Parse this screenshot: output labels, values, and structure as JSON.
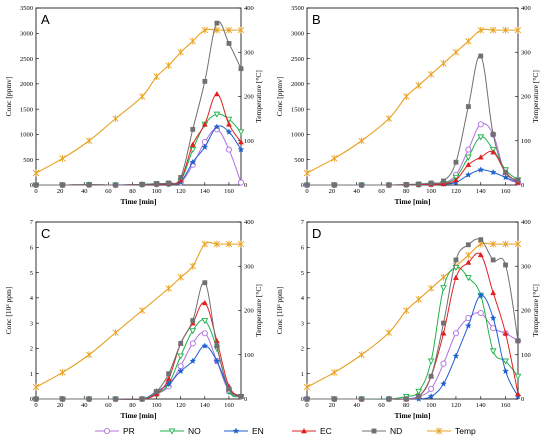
{
  "colors": {
    "PR": "#b070e0",
    "NO": "#1fb24a",
    "EN": "#1f5fd0",
    "EC": "#e02020",
    "ND": "#707070",
    "Temp": "#e8a020"
  },
  "legend": [
    "PR",
    "NO",
    "EN",
    "EC",
    "ND",
    "Temp"
  ],
  "chart_data": [
    {
      "type": "line",
      "panel": "A",
      "xlabel": "Time [min]",
      "ylabel": "Conc [ppmv]",
      "y2label": "Temperature [°C]",
      "xlim": [
        0,
        170
      ],
      "ylim": [
        0,
        3500
      ],
      "y2lim": [
        0,
        400
      ],
      "xticks": [
        "0",
        "20",
        "40",
        "60",
        "80",
        "100",
        "120",
        "140",
        "160"
      ],
      "yticks": [
        "0",
        "500",
        "1000",
        "1500",
        "2000",
        "2500",
        "3000",
        "3500"
      ],
      "y2ticks": [
        "0",
        "100",
        "200",
        "300",
        "400"
      ],
      "series": [
        {
          "name": "PR",
          "x": [
            0,
            22,
            44,
            66,
            88,
            100,
            110,
            120,
            130,
            140,
            150,
            160,
            170
          ],
          "values": [
            0,
            0,
            5,
            0,
            10,
            15,
            20,
            50,
            400,
            850,
            1100,
            700,
            50
          ]
        },
        {
          "name": "NO",
          "x": [
            0,
            22,
            44,
            66,
            88,
            100,
            110,
            120,
            130,
            140,
            150,
            160,
            170
          ],
          "values": [
            0,
            0,
            5,
            0,
            10,
            20,
            25,
            80,
            700,
            1200,
            1400,
            1300,
            1050
          ]
        },
        {
          "name": "EN",
          "x": [
            0,
            22,
            44,
            66,
            88,
            100,
            110,
            120,
            130,
            140,
            150,
            160,
            170
          ],
          "values": [
            0,
            0,
            5,
            0,
            10,
            15,
            20,
            60,
            450,
            750,
            1150,
            1050,
            700
          ]
        },
        {
          "name": "EC",
          "x": [
            0,
            22,
            44,
            66,
            88,
            100,
            110,
            120,
            130,
            140,
            150,
            160,
            170
          ],
          "values": [
            0,
            0,
            5,
            0,
            10,
            20,
            30,
            100,
            800,
            1200,
            1800,
            1200,
            850
          ]
        },
        {
          "name": "ND",
          "x": [
            0,
            22,
            44,
            66,
            88,
            100,
            110,
            120,
            130,
            140,
            150,
            160,
            170
          ],
          "values": [
            0,
            0,
            5,
            0,
            10,
            30,
            40,
            150,
            1100,
            2050,
            3200,
            2800,
            2300
          ]
        }
      ],
      "temperature": {
        "name": "Temp",
        "x": [
          0,
          22,
          44,
          66,
          88,
          100,
          110,
          120,
          130,
          140,
          150,
          160,
          170
        ],
        "values": [
          27,
          60,
          100,
          150,
          200,
          245,
          270,
          300,
          325,
          350,
          350,
          350,
          350
        ]
      }
    },
    {
      "type": "line",
      "panel": "B",
      "xlabel": "Time [min]",
      "ylabel": "Conc [ppmv]",
      "y2label": "Temperature [°C]",
      "xlim": [
        0,
        170
      ],
      "ylim": [
        0,
        3500
      ],
      "y2lim": [
        0,
        400
      ],
      "xticks": [
        "0",
        "20",
        "40",
        "60",
        "80",
        "100",
        "120",
        "140",
        "160"
      ],
      "yticks": [
        "0",
        "500",
        "1000",
        "1500",
        "2000",
        "2500",
        "3000",
        "3500"
      ],
      "y2ticks": [
        "0",
        "100",
        "200",
        "300",
        "400"
      ],
      "series": [
        {
          "name": "PR",
          "x": [
            0,
            22,
            44,
            66,
            80,
            90,
            100,
            110,
            120,
            130,
            140,
            150,
            160,
            170
          ],
          "values": [
            0,
            0,
            0,
            0,
            5,
            10,
            20,
            40,
            200,
            700,
            1200,
            1000,
            200,
            50
          ]
        },
        {
          "name": "NO",
          "x": [
            0,
            22,
            44,
            66,
            80,
            90,
            100,
            110,
            120,
            130,
            140,
            150,
            160,
            170
          ],
          "values": [
            0,
            0,
            0,
            0,
            5,
            10,
            15,
            30,
            150,
            550,
            950,
            700,
            300,
            100
          ]
        },
        {
          "name": "EN",
          "x": [
            0,
            22,
            44,
            66,
            80,
            90,
            100,
            110,
            120,
            130,
            140,
            150,
            160,
            170
          ],
          "values": [
            0,
            0,
            0,
            0,
            3,
            5,
            10,
            20,
            50,
            200,
            300,
            250,
            150,
            50
          ]
        },
        {
          "name": "EC",
          "x": [
            0,
            22,
            44,
            66,
            80,
            90,
            100,
            110,
            120,
            130,
            140,
            150,
            160,
            170
          ],
          "values": [
            0,
            0,
            0,
            0,
            5,
            10,
            15,
            25,
            100,
            400,
            550,
            650,
            250,
            50
          ]
        },
        {
          "name": "ND",
          "x": [
            0,
            22,
            44,
            66,
            80,
            90,
            100,
            110,
            120,
            130,
            140,
            150,
            160,
            170
          ],
          "values": [
            0,
            0,
            0,
            0,
            10,
            20,
            40,
            80,
            450,
            1550,
            2550,
            1000,
            250,
            100
          ]
        }
      ],
      "temperature": {
        "name": "Temp",
        "x": [
          0,
          22,
          44,
          66,
          80,
          90,
          100,
          110,
          120,
          130,
          140,
          150,
          160,
          170
        ],
        "values": [
          27,
          60,
          100,
          150,
          200,
          225,
          250,
          275,
          300,
          325,
          350,
          350,
          350,
          350
        ]
      }
    },
    {
      "type": "line",
      "panel": "C",
      "xlabel": "Time [min]",
      "ylabel": "Conc [10³ ppm]",
      "y2label": "Temperature [°C]",
      "xlim": [
        0,
        170
      ],
      "ylim": [
        0,
        7
      ],
      "y2lim": [
        0,
        400
      ],
      "xticks": [
        "0",
        "20",
        "40",
        "60",
        "80",
        "100",
        "120",
        "140",
        "160"
      ],
      "yticks": [
        "0",
        "1",
        "2",
        "3",
        "4",
        "5",
        "6",
        "7"
      ],
      "y2ticks": [
        "0",
        "100",
        "200",
        "300",
        "400"
      ],
      "series": [
        {
          "name": "PR",
          "x": [
            0,
            22,
            44,
            66,
            88,
            100,
            110,
            120,
            130,
            140,
            150,
            160,
            170
          ],
          "values": [
            0,
            0,
            0,
            0,
            0,
            0.2,
            0.5,
            1.3,
            2.2,
            2.6,
            1.5,
            0.3,
            0.1
          ]
        },
        {
          "name": "NO",
          "x": [
            0,
            22,
            44,
            66,
            88,
            100,
            110,
            120,
            130,
            140,
            150,
            160,
            170
          ],
          "values": [
            0,
            0,
            0,
            0,
            0,
            0.2,
            0.6,
            1.7,
            2.7,
            3.1,
            2.0,
            0.3,
            0.1
          ]
        },
        {
          "name": "EN",
          "x": [
            0,
            22,
            44,
            66,
            88,
            100,
            110,
            120,
            130,
            140,
            150,
            160,
            170
          ],
          "values": [
            0,
            0,
            0,
            0,
            0,
            0.3,
            0.6,
            1.1,
            1.5,
            2.1,
            1.5,
            0.4,
            0.1
          ]
        },
        {
          "name": "EC",
          "x": [
            0,
            22,
            44,
            66,
            88,
            100,
            110,
            120,
            130,
            140,
            150,
            160,
            170
          ],
          "values": [
            0,
            0,
            0,
            0,
            0,
            0.2,
            0.8,
            2.2,
            3.0,
            3.8,
            2.3,
            0.5,
            0.1
          ]
        },
        {
          "name": "ND",
          "x": [
            0,
            22,
            44,
            66,
            88,
            100,
            110,
            120,
            130,
            140,
            150,
            160,
            170
          ],
          "values": [
            0,
            0,
            0,
            0,
            0,
            0.3,
            1.0,
            2.2,
            3.1,
            4.6,
            2.1,
            0.4,
            0.1
          ]
        }
      ],
      "temperature": {
        "name": "Temp",
        "x": [
          0,
          22,
          44,
          66,
          88,
          110,
          120,
          130,
          140,
          150,
          160,
          170
        ],
        "values": [
          27,
          60,
          100,
          150,
          200,
          250,
          275,
          300,
          350,
          350,
          350,
          350
        ]
      }
    },
    {
      "type": "line",
      "panel": "D",
      "xlabel": "Time [min]",
      "ylabel": "Conc [10³ ppm]",
      "y2label": "Temperature [°C]",
      "xlim": [
        0,
        170
      ],
      "ylim": [
        0,
        7
      ],
      "y2lim": [
        0,
        400
      ],
      "xticks": [
        "0",
        "20",
        "40",
        "60",
        "80",
        "100",
        "120",
        "140",
        "160"
      ],
      "yticks": [
        "0",
        "1",
        "2",
        "3",
        "4",
        "5",
        "6",
        "7"
      ],
      "y2ticks": [
        "0",
        "100",
        "200",
        "300",
        "400"
      ],
      "series": [
        {
          "name": "PR",
          "x": [
            0,
            22,
            44,
            66,
            80,
            90,
            100,
            110,
            120,
            130,
            140,
            150,
            160,
            170
          ],
          "values": [
            0,
            0,
            0,
            0,
            0,
            0.1,
            0.4,
            1.4,
            2.6,
            3.2,
            3.4,
            2.8,
            2.6,
            2.3
          ]
        },
        {
          "name": "NO",
          "x": [
            0,
            22,
            44,
            66,
            80,
            90,
            100,
            110,
            120,
            130,
            140,
            150,
            160,
            170
          ],
          "values": [
            0,
            0,
            0,
            0,
            0.1,
            0.3,
            1.5,
            4.4,
            5.2,
            4.8,
            4.1,
            1.9,
            1.5,
            0.9
          ]
        },
        {
          "name": "EN",
          "x": [
            0,
            22,
            44,
            66,
            80,
            90,
            100,
            110,
            120,
            130,
            140,
            150,
            160,
            170
          ],
          "values": [
            0,
            0,
            0,
            0,
            0,
            0,
            0.1,
            0.6,
            1.7,
            2.9,
            4.1,
            3.2,
            1.1,
            0.1
          ]
        },
        {
          "name": "EC",
          "x": [
            0,
            22,
            44,
            66,
            80,
            90,
            100,
            110,
            120,
            130,
            140,
            150,
            160,
            170
          ],
          "values": [
            0,
            0,
            0,
            0,
            0,
            0.1,
            0.9,
            2.6,
            4.8,
            5.4,
            5.7,
            4.2,
            2.6,
            0.2
          ]
        },
        {
          "name": "ND",
          "x": [
            0,
            22,
            44,
            66,
            80,
            90,
            100,
            110,
            120,
            130,
            140,
            150,
            160,
            170
          ],
          "values": [
            0,
            0,
            0,
            0,
            0,
            0.1,
            0.9,
            3.0,
            5.5,
            6.1,
            6.3,
            5.5,
            5.3,
            2.3
          ]
        }
      ],
      "temperature": {
        "name": "Temp",
        "x": [
          0,
          22,
          44,
          66,
          80,
          90,
          100,
          110,
          120,
          130,
          140,
          150,
          160,
          170
        ],
        "values": [
          27,
          60,
          100,
          150,
          200,
          225,
          250,
          275,
          300,
          325,
          350,
          350,
          350,
          350
        ]
      }
    }
  ]
}
